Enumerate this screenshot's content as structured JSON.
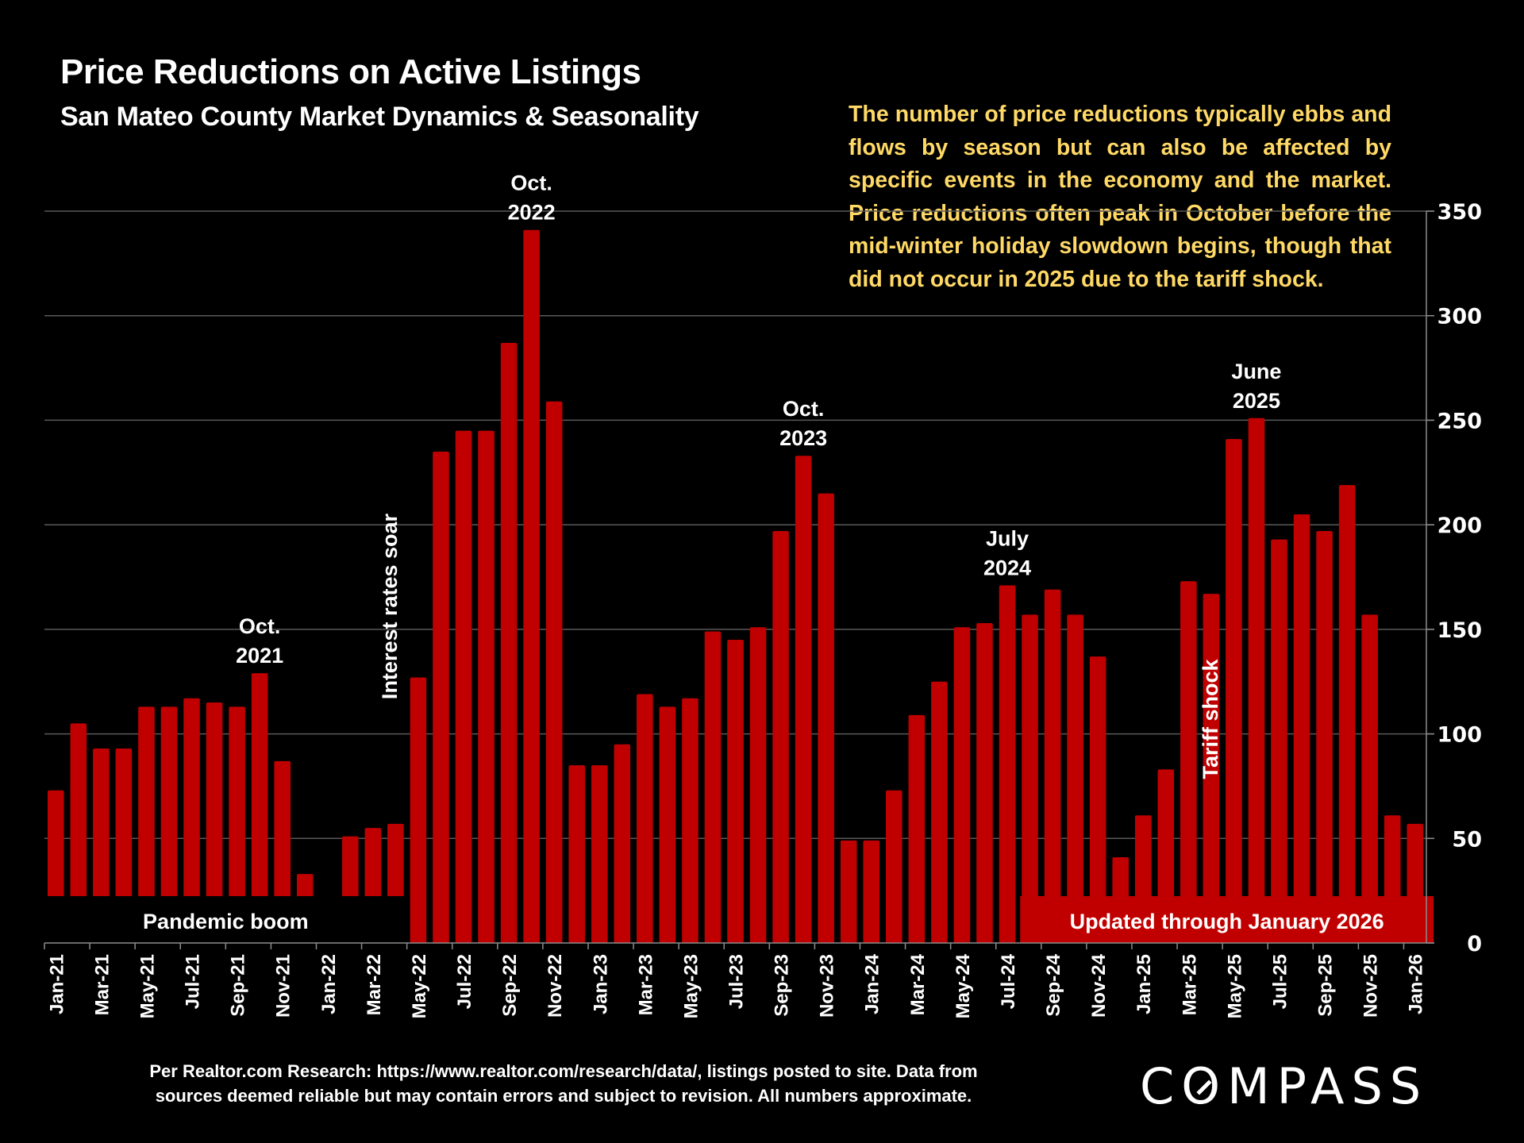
{
  "header": {
    "title": "Price Reductions on Active Listings",
    "subtitle": "San Mateo County Market Dynamics & Seasonality"
  },
  "note": "The number of price reductions typically ebbs and flows by season but can also be affected by specific events in the economy and the market. Price reductions often peak in October before the mid-winter holiday slowdown begins, though that did not occur in 2025 due to the tariff shock.",
  "footer": {
    "line1": "Per Realtor.com Research:  https://www.realtor.com/research/data/, listings posted to site. Data from",
    "line2": "sources deemed reliable but may contain errors and subject to revision. All numbers approximate."
  },
  "brand": {
    "logo_text": "COMPASS"
  },
  "colors": {
    "bar": "#C00000",
    "note_text": "#FFD966",
    "background": "#000000",
    "gridline": "#595959"
  },
  "chart_data": {
    "type": "bar",
    "title": "Price Reductions on Active Listings",
    "subtitle": "San Mateo County Market Dynamics & Seasonality",
    "xlabel": "",
    "ylabel": "",
    "ylim": [
      0,
      350
    ],
    "yticks": [
      0,
      50,
      100,
      150,
      200,
      250,
      300,
      350
    ],
    "y_axis_side": "right",
    "grid": true,
    "categories": [
      "Jan-21",
      "Feb-21",
      "Mar-21",
      "Apr-21",
      "May-21",
      "Jun-21",
      "Jul-21",
      "Aug-21",
      "Sep-21",
      "Oct-21",
      "Nov-21",
      "Dec-21",
      "Jan-22",
      "Feb-22",
      "Mar-22",
      "Apr-22",
      "May-22",
      "Jun-22",
      "Jul-22",
      "Aug-22",
      "Sep-22",
      "Oct-22",
      "Nov-22",
      "Dec-22",
      "Jan-23",
      "Feb-23",
      "Mar-23",
      "Apr-23",
      "May-23",
      "Jun-23",
      "Jul-23",
      "Aug-23",
      "Sep-23",
      "Oct-23",
      "Nov-23",
      "Dec-23",
      "Jan-24",
      "Feb-24",
      "Mar-24",
      "Apr-24",
      "May-24",
      "Jun-24",
      "Jul-24",
      "Aug-24",
      "Sep-24",
      "Oct-24",
      "Nov-24",
      "Dec-24",
      "Jan-25",
      "Feb-25",
      "Mar-25",
      "Apr-25",
      "May-25",
      "Jun-25",
      "Jul-25",
      "Aug-25",
      "Sep-25",
      "Oct-25",
      "Nov-25",
      "Dec-25",
      "Jan-26"
    ],
    "values": [
      73,
      105,
      93,
      93,
      113,
      113,
      117,
      115,
      113,
      129,
      87,
      33,
      0,
      51,
      55,
      57,
      127,
      235,
      245,
      245,
      287,
      341,
      259,
      85,
      85,
      95,
      119,
      113,
      117,
      149,
      145,
      151,
      197,
      233,
      215,
      49,
      49,
      73,
      109,
      125,
      151,
      153,
      171,
      157,
      169,
      157,
      137,
      41,
      61,
      83,
      173,
      167,
      241,
      251,
      193,
      205,
      197,
      219,
      157,
      61,
      57
    ],
    "tick_labels_shown": [
      "Jan-21",
      "Mar-21",
      "May-21",
      "Jul-21",
      "Sep-21",
      "Nov-21",
      "Jan-22",
      "Mar-22",
      "May-22",
      "Jul-22",
      "Sep-22",
      "Nov-22",
      "Jan-23",
      "Mar-23",
      "May-23",
      "Jul-23",
      "Sep-23",
      "Nov-23",
      "Jan-24",
      "Mar-24",
      "May-24",
      "Jul-24",
      "Sep-24",
      "Nov-24",
      "Jan-25",
      "Mar-25",
      "May-25",
      "Jul-25",
      "Sep-25",
      "Nov-25",
      "Jan-26"
    ],
    "annotations": [
      {
        "category": "Oct-21",
        "line1": "Oct.",
        "line2": "2021"
      },
      {
        "category": "Oct-22",
        "line1": "Oct.",
        "line2": "2022"
      },
      {
        "category": "Oct-23",
        "line1": "Oct.",
        "line2": "2023"
      },
      {
        "category": "Jul-24",
        "line1": "July",
        "line2": "2024"
      },
      {
        "category": "Jun-25",
        "line1": "June",
        "line2": "2025"
      }
    ],
    "vertical_labels": [
      {
        "text": "Interest rates soar",
        "near": "Apr-22"
      },
      {
        "text": "Tariff shock",
        "near": "Apr-25"
      }
    ],
    "banners": [
      {
        "text": "Pandemic boom",
        "from": "Jan-21",
        "to": "Apr-22",
        "style": "black"
      },
      {
        "text": "Updated through January 2026",
        "from": "Aug-24",
        "to": "Jan-26",
        "style": "red"
      }
    ]
  }
}
